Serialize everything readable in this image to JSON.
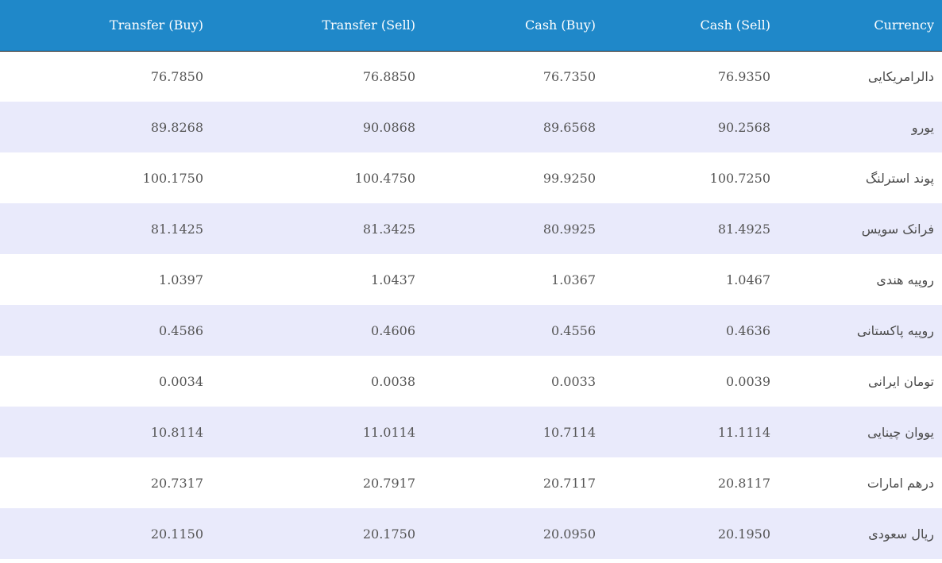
{
  "headers": [
    "Transfer (Buy)",
    "Transfer (Sell)",
    "Cash (Buy)",
    "Cash (Sell)",
    "Currency"
  ],
  "rows": [
    {
      "transfer_buy": "76.7850",
      "transfer_sell": "76.8850",
      "cash_buy": "76.7350",
      "cash_sell": "76.9350",
      "currency": "دالرامریکایی"
    },
    {
      "transfer_buy": "89.8268",
      "transfer_sell": "90.0868",
      "cash_buy": "89.6568",
      "cash_sell": "90.2568",
      "currency": "یورو"
    },
    {
      "transfer_buy": "100.1750",
      "transfer_sell": "100.4750",
      "cash_buy": "99.9250",
      "cash_sell": "100.7250",
      "currency": "پوند استرلنگ"
    },
    {
      "transfer_buy": "81.1425",
      "transfer_sell": "81.3425",
      "cash_buy": "80.9925",
      "cash_sell": "81.4925",
      "currency": "فرانک سویس"
    },
    {
      "transfer_buy": "1.0397",
      "transfer_sell": "1.0437",
      "cash_buy": "1.0367",
      "cash_sell": "1.0467",
      "currency": "روپیه هندی"
    },
    {
      "transfer_buy": "0.4586",
      "transfer_sell": "0.4606",
      "cash_buy": "0.4556",
      "cash_sell": "0.4636",
      "currency": "روپیه پاکستانی"
    },
    {
      "transfer_buy": "0.0034",
      "transfer_sell": "0.0038",
      "cash_buy": "0.0033",
      "cash_sell": "0.0039",
      "currency": "تومان ایرانی"
    },
    {
      "transfer_buy": "10.8114",
      "transfer_sell": "11.0114",
      "cash_buy": "10.7114",
      "cash_sell": "11.1114",
      "currency": "یووان چینایی"
    },
    {
      "transfer_buy": "20.7317",
      "transfer_sell": "20.7917",
      "cash_buy": "20.7117",
      "cash_sell": "20.8117",
      "currency": "درهم امارات"
    },
    {
      "transfer_buy": "20.1150",
      "transfer_sell": "20.1750",
      "cash_buy": "20.0950",
      "cash_sell": "20.1950",
      "currency": "ریال سعودی"
    }
  ],
  "colors": {
    "header_bg": "#1f88c9",
    "row_alt_bg": "#e9eafb",
    "text": "#555555"
  }
}
